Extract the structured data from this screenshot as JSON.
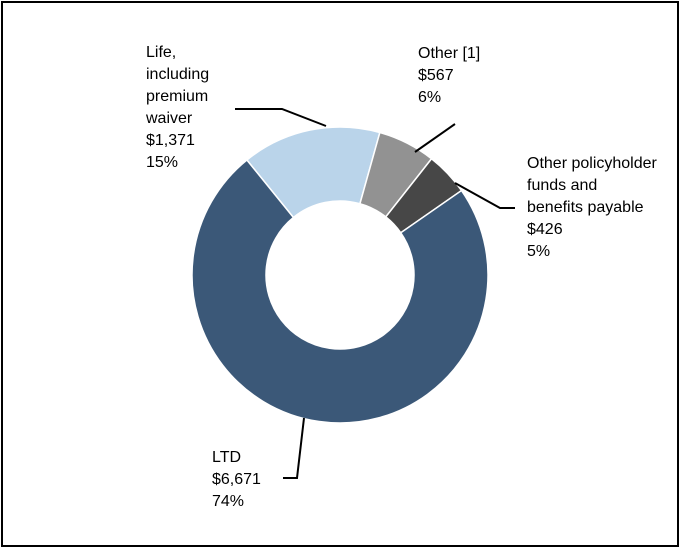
{
  "chart_data": {
    "type": "pie",
    "subtype": "donut",
    "slices": [
      {
        "name": "Life, including premium waiver",
        "name_lines": [
          "Life,",
          "including",
          "premium",
          "waiver"
        ],
        "value": 1371,
        "value_label": "$1,371",
        "percent": 15,
        "percent_label": "15%",
        "color": "#bad4ea"
      },
      {
        "name": "Other [1]",
        "name_lines": [
          "Other [1]"
        ],
        "value": 567,
        "value_label": "$567",
        "percent": 6,
        "percent_label": "6%",
        "color": "#929292"
      },
      {
        "name": "Other policyholder funds and benefits payable",
        "name_lines": [
          "Other policyholder",
          "funds and",
          "benefits payable"
        ],
        "value": 426,
        "value_label": "$426",
        "percent": 5,
        "percent_label": "5%",
        "color": "#474747"
      },
      {
        "name": "LTD",
        "name_lines": [
          "LTD"
        ],
        "value": 6671,
        "value_label": "$6,671",
        "percent": 74,
        "percent_label": "74%",
        "color": "#3b5878"
      }
    ]
  }
}
